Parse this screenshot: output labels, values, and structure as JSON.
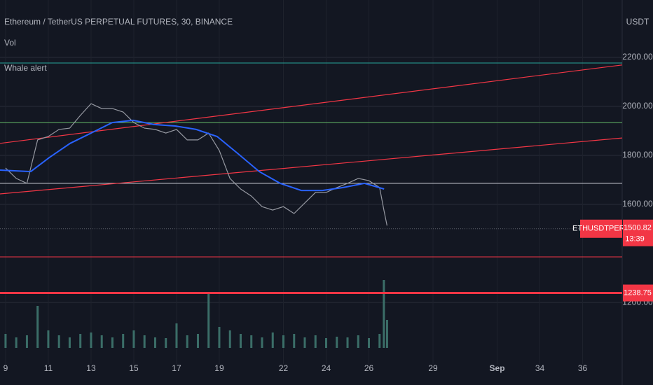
{
  "chart_data": {
    "type": "line",
    "title": "Ethereum / TetherUS PERPETUAL FUTURES, 30, BINANCE",
    "indicators": [
      "Vol",
      "Whale alert"
    ],
    "currency": "USDT",
    "x": [
      9,
      9.5,
      10,
      10.5,
      11,
      11.5,
      12,
      12.5,
      13,
      13.5,
      14,
      14.5,
      15,
      15.5,
      16,
      16.5,
      17,
      17.5,
      18,
      18.5,
      19,
      19.5,
      20,
      20.5,
      21,
      21.5,
      22,
      22.5,
      23,
      23.5,
      24,
      24.5,
      25,
      25.5,
      26,
      26.5,
      26.7,
      26.85
    ],
    "series": [
      {
        "color": "#9598a1",
        "values": [
          1749,
          1706,
          1686,
          1863,
          1877,
          1906,
          1911,
          1963,
          2011,
          1991,
          1991,
          1977,
          1934,
          1911,
          1906,
          1891,
          1906,
          1863,
          1863,
          1891,
          1820,
          1706,
          1663,
          1634,
          1591,
          1577,
          1591,
          1563,
          1606,
          1649,
          1649,
          1669,
          1686,
          1706,
          1697,
          1669,
          1577,
          1514
        ]
      }
    ],
    "volume": {
      "color": "#3b6e68",
      "values": [
        20,
        15,
        18,
        60,
        25,
        18,
        15,
        20,
        22,
        18,
        15,
        20,
        25,
        18,
        15,
        14,
        35,
        18,
        20,
        80,
        30,
        25,
        20,
        18,
        15,
        22,
        18,
        20,
        15,
        18,
        14,
        16,
        15,
        18,
        14,
        20,
        97,
        40
      ],
      "vlim": [
        0,
        100
      ]
    },
    "moving_average": {
      "color": "#2962ff",
      "x": [
        8.74,
        10.18,
        11.04,
        12.02,
        13.0,
        13.99,
        14.97,
        15.95,
        16.94,
        17.92,
        18.9,
        19.89,
        20.87,
        21.85,
        22.84,
        23.82,
        24.8,
        25.79,
        26.71
      ],
      "values": [
        1740,
        1734,
        1791,
        1849,
        1891,
        1934,
        1943,
        1926,
        1920,
        1906,
        1877,
        1806,
        1734,
        1686,
        1657,
        1657,
        1669,
        1686,
        1663
      ]
    },
    "trendlines": [
      {
        "color": "#f23645",
        "x": [
          8.74,
          37.85
        ],
        "values": [
          1849,
          2169
        ]
      },
      {
        "color": "#f23645",
        "x": [
          8.74,
          37.85
        ],
        "values": [
          1643,
          1871
        ]
      }
    ],
    "levels": [
      {
        "value": 2177,
        "color": "#26a69a"
      },
      {
        "value": 1934,
        "color": "#66bb6a"
      },
      {
        "value": 1686,
        "color": "#d1d4dc"
      },
      {
        "value": 1386,
        "color": "#f23645"
      }
    ],
    "last_price": 1500.82,
    "symbol": "ETHUSDTPERP",
    "countdown": "13:39",
    "alert_level": 1238.75,
    "alert_color": "#f23645",
    "xlim": [
      8.74,
      37.85
    ],
    "xticks": [
      9,
      11,
      13,
      15,
      17,
      19,
      22,
      24,
      26,
      29,
      {
        "value": 32,
        "label": "Sep"
      },
      34,
      36
    ],
    "ylim": [
      949,
      2434
    ],
    "yticks": [
      {
        "value": 1200,
        "label": "1200.00"
      },
      {
        "value": 1600,
        "label": "1600.00"
      },
      {
        "value": 1800,
        "label": "1800.00"
      },
      {
        "value": 2000,
        "label": "2000.00"
      },
      {
        "value": 2200,
        "label": "2200.00"
      }
    ],
    "grid": true
  }
}
